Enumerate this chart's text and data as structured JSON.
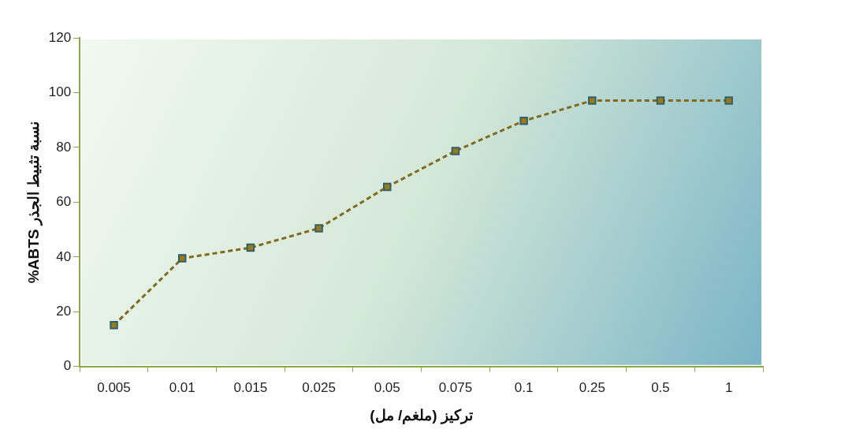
{
  "chart_data": {
    "type": "line",
    "xlabel": "تركيز (ملغم/ مل)",
    "ylabel": "%ABTS نسبة تثبيط الجذر",
    "categories": [
      "0.005",
      "0.01",
      "0.015",
      "0.025",
      "0.05",
      "0.075",
      "0.1",
      "0.25",
      "0.5",
      "1"
    ],
    "series": [
      {
        "color": "#7f6a1e",
        "values": [
          15.1,
          39.5,
          43.4,
          50.5,
          65.6,
          78.7,
          89.7,
          97.1,
          97.1,
          97.1
        ]
      }
    ],
    "ylim": [
      0,
      120
    ],
    "yticks": [
      0,
      20,
      40,
      60,
      80,
      100,
      120
    ],
    "grid": false,
    "legend": false,
    "marker": "square",
    "line_style": "dashed"
  }
}
